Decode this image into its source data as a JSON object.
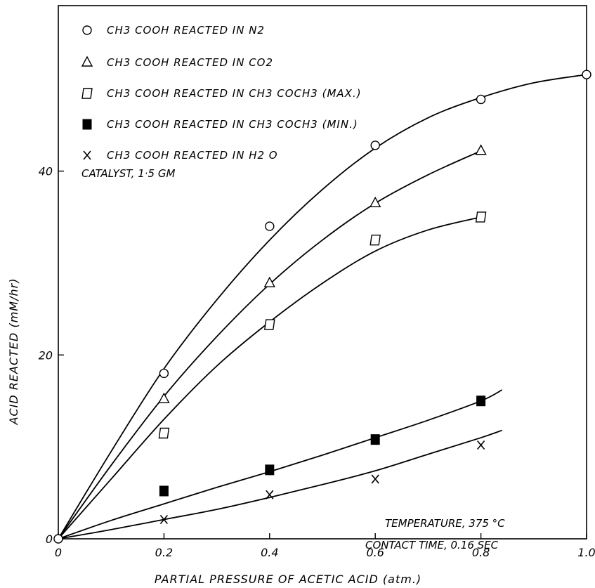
{
  "chart_data": {
    "type": "scatter",
    "xlabel": "PARTIAL PRESSURE OF ACETIC ACID",
    "xlabel_unit": "(atm.)",
    "ylabel": "ACID REACTED",
    "ylabel_unit": "(mM/hr)",
    "xlim": [
      0,
      1.0
    ],
    "ylim": [
      0,
      58
    ],
    "x_ticks": [
      "0",
      "0.2",
      "0.4",
      "0.6",
      "0.8",
      "1.0"
    ],
    "y_ticks": [
      "0",
      "20",
      "40"
    ],
    "legend_placement": "top-left",
    "series": [
      {
        "name": "CH3 COOH REACTED IN N2",
        "marker": "circle",
        "x": [
          0,
          0.2,
          0.4,
          0.6,
          0.8,
          1.0
        ],
        "y": [
          0,
          18,
          34,
          42.8,
          47.8,
          50.5
        ],
        "curve": [
          [
            0,
            0
          ],
          [
            0.1,
            9.5
          ],
          [
            0.2,
            18.5
          ],
          [
            0.3,
            26
          ],
          [
            0.4,
            32.5
          ],
          [
            0.5,
            38
          ],
          [
            0.6,
            42.5
          ],
          [
            0.7,
            45.8
          ],
          [
            0.8,
            48
          ],
          [
            0.9,
            49.6
          ],
          [
            1.0,
            50.5
          ]
        ]
      },
      {
        "name": "CH3 COOH REACTED IN CO2",
        "marker": "triangle",
        "x": [
          0.2,
          0.4,
          0.6,
          0.8
        ],
        "y": [
          15.2,
          27.8,
          36.5,
          42.2
        ],
        "curve": [
          [
            0,
            0
          ],
          [
            0.1,
            8
          ],
          [
            0.2,
            15.5
          ],
          [
            0.3,
            22
          ],
          [
            0.4,
            27.7
          ],
          [
            0.5,
            32.5
          ],
          [
            0.6,
            36.5
          ],
          [
            0.7,
            39.6
          ],
          [
            0.8,
            42.2
          ]
        ]
      },
      {
        "name": "CH3 COOH REACTED IN CH3 COCH3 (MAX.)",
        "marker": "square-open",
        "x": [
          0.2,
          0.4,
          0.6,
          0.8
        ],
        "y": [
          11.5,
          23.3,
          32.5,
          35
        ],
        "curve": [
          [
            0,
            0
          ],
          [
            0.1,
            6.5
          ],
          [
            0.2,
            13
          ],
          [
            0.3,
            18.8
          ],
          [
            0.4,
            23.6
          ],
          [
            0.5,
            27.8
          ],
          [
            0.6,
            31.3
          ],
          [
            0.7,
            33.6
          ],
          [
            0.8,
            35
          ]
        ]
      },
      {
        "name": "CH3 COOH REACTED IN CH3 COCH3 (MIN.)",
        "marker": "square-filled",
        "x": [
          0.2,
          0.4,
          0.6,
          0.8
        ],
        "y": [
          5.2,
          7.5,
          10.8,
          15
        ],
        "curve": [
          [
            0,
            0
          ],
          [
            0.1,
            2
          ],
          [
            0.2,
            3.8
          ],
          [
            0.3,
            5.6
          ],
          [
            0.4,
            7.3
          ],
          [
            0.5,
            9.1
          ],
          [
            0.6,
            11
          ],
          [
            0.7,
            12.9
          ],
          [
            0.8,
            15
          ],
          [
            0.84,
            16.2
          ]
        ]
      },
      {
        "name": "CH3 COOH REACTED IN H2 O",
        "marker": "x",
        "x": [
          0.2,
          0.4,
          0.6,
          0.8
        ],
        "y": [
          2.1,
          4.8,
          6.5,
          10.2
        ],
        "curve": [
          [
            0,
            0
          ],
          [
            0.1,
            1
          ],
          [
            0.2,
            2.1
          ],
          [
            0.3,
            3.2
          ],
          [
            0.4,
            4.5
          ],
          [
            0.5,
            5.9
          ],
          [
            0.6,
            7.4
          ],
          [
            0.7,
            9.2
          ],
          [
            0.8,
            11
          ],
          [
            0.84,
            11.8
          ]
        ]
      }
    ],
    "annotations": {
      "legend": [
        {
          "marker": "O",
          "text": "CH3 COOH  REACTED  IN  N2"
        },
        {
          "marker": "Δ",
          "text": "CH3 COOH  REACTED  IN  CO2"
        },
        {
          "marker": "□",
          "text": "CH3 COOH  REACTED  IN  CH3 COCH3 (MAX.)"
        },
        {
          "marker": "■",
          "text": "CH3 COOH  REACTED  IN  CH3 COCH3 (MIN.)"
        },
        {
          "marker": "X",
          "text": "CH3 COOH  REACTED  IN  H2 O"
        }
      ],
      "catalyst": "CATALYST,  1·5 GM",
      "temperature": "TEMPERATURE,  375 °C",
      "contact_time": "CONTACT  TIME,  0.16 SEC"
    }
  }
}
